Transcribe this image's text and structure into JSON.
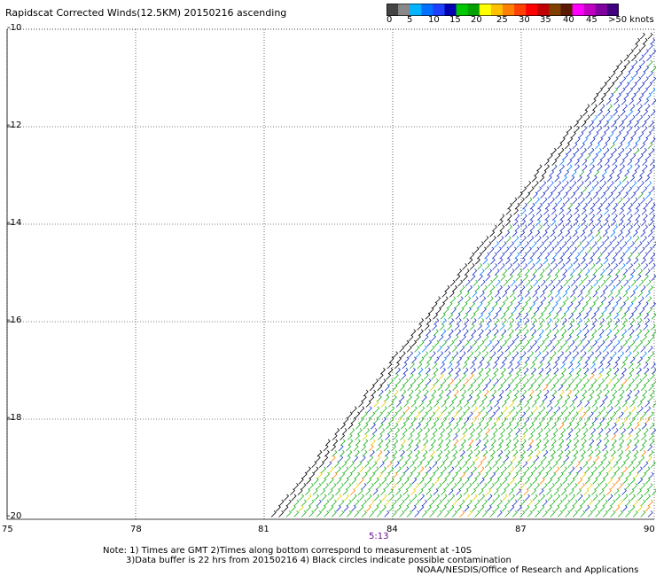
{
  "title": "Rapidscat Corrected Winds(12.5KM) 20150216 ascending",
  "colorbar": {
    "colors": [
      "#444444",
      "#888888",
      "#00b4ff",
      "#0070ff",
      "#1f3fff",
      "#0000b0",
      "#00c800",
      "#00a000",
      "#ffff00",
      "#ffc000",
      "#ff8000",
      "#ff4000",
      "#ff0000",
      "#c00000",
      "#804000",
      "#5a1a00",
      "#ff00ff",
      "#c000c0",
      "#8000a0",
      "#400080"
    ],
    "labels": [
      "0",
      "5",
      "10",
      "15",
      "20",
      "25",
      "30",
      "35",
      "40",
      "45",
      ">50 knots"
    ]
  },
  "lat_labels": [
    "-10",
    "-12",
    "-14",
    "-16",
    "-18",
    "-20"
  ],
  "lon_labels": [
    "75",
    "78",
    "81",
    "84",
    "87",
    "90"
  ],
  "timestamp": "5:13",
  "notes": {
    "line1": "Note: 1) Times are GMT 2)Times along bottom correspond to measurement at -10S",
    "line2": "3)Data buffer is 22 hrs from 20150216 4) Black circles indicate possible contamination",
    "line3": "NOAA/NESDIS/Office of Research and Applications"
  }
}
